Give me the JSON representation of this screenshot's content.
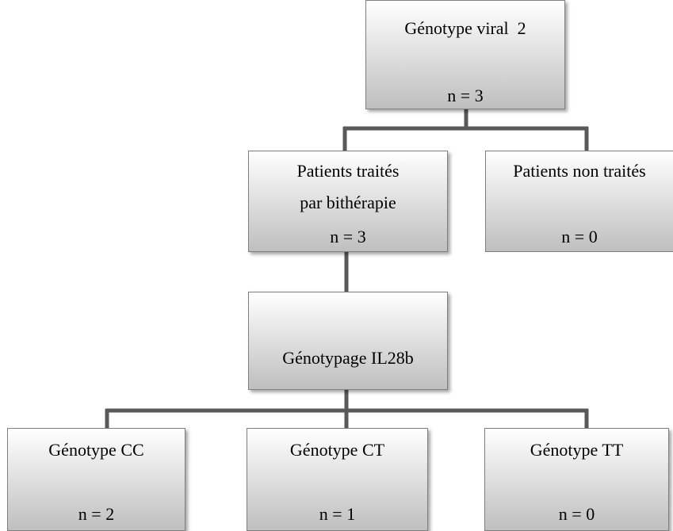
{
  "nodes": [
    {
      "lines": [
        "Génotype viral  2",
        "n = 3"
      ]
    },
    {
      "lines": [
        "Patients traités",
        "par bithérapie",
        "n = 3"
      ]
    },
    {
      "lines": [
        "Patients non traités",
        "n = 0"
      ]
    },
    {
      "lines": [
        "Génotypage IL28b"
      ]
    },
    {
      "lines": [
        "Génotype CC",
        "n = 2"
      ]
    },
    {
      "lines": [
        "Génotype CT",
        "n = 1"
      ]
    },
    {
      "lines": [
        "Génotype TT",
        "n = 0"
      ]
    }
  ]
}
